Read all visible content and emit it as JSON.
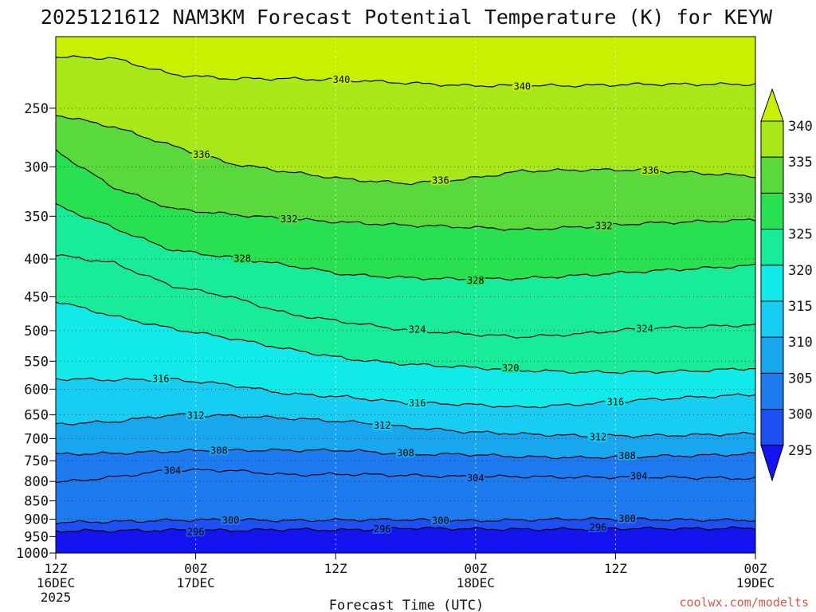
{
  "chart_data": {
    "type": "heatmap",
    "title": "2025121612 NAM3KM Forecast Potential Temperature (K) for KEYW",
    "xlabel": "Forecast Time (UTC)",
    "ylabel": "",
    "x_range_hours": [
      0,
      60
    ],
    "y_range_hpa": [
      1000,
      200
    ],
    "y_scale": "log-pressure",
    "x_ticks": [
      {
        "hour": 0,
        "lines": [
          "12Z",
          "16DEC",
          "2025"
        ]
      },
      {
        "hour": 12,
        "lines": [
          "00Z",
          "17DEC"
        ]
      },
      {
        "hour": 24,
        "lines": [
          "12Z"
        ]
      },
      {
        "hour": 36,
        "lines": [
          "00Z",
          "18DEC"
        ]
      },
      {
        "hour": 48,
        "lines": [
          "12Z"
        ]
      },
      {
        "hour": 60,
        "lines": [
          "00Z",
          "19DEC"
        ]
      }
    ],
    "y_ticks": [
      250,
      300,
      350,
      400,
      450,
      500,
      550,
      600,
      650,
      700,
      750,
      800,
      850,
      900,
      950,
      1000
    ],
    "colorbar": {
      "levels": [
        295,
        300,
        305,
        310,
        315,
        320,
        325,
        330,
        335,
        340
      ],
      "colors": [
        "#1414f2",
        "#1e4ff0",
        "#1e7bef",
        "#18a6ef",
        "#18cdf2",
        "#12eaea",
        "#18ec9a",
        "#28e050",
        "#5ad93c",
        "#a8e818",
        "#c8f000"
      ],
      "labels": [
        "295",
        "300",
        "305",
        "310",
        "315",
        "320",
        "325",
        "330",
        "335",
        "340"
      ]
    },
    "isentropes": [
      {
        "theta": 296,
        "p": [
          933,
          933,
          931,
          932,
          929,
          931,
          925,
          927,
          929,
          928,
          926,
          927,
          925
        ]
      },
      {
        "theta": 300,
        "p": [
          909,
          907,
          903,
          901,
          904,
          902,
          901,
          905,
          902,
          899,
          900,
          902,
          903
        ]
      },
      {
        "theta": 304,
        "p": [
          803,
          789,
          772,
          773,
          784,
          782,
          785,
          788,
          788,
          790,
          789,
          791,
          793
        ]
      },
      {
        "theta": 308,
        "p": [
          735,
          733,
          728,
          726,
          726,
          726,
          735,
          735,
          741,
          743,
          740,
          738,
          734
        ]
      },
      {
        "theta": 312,
        "p": [
          669,
          664,
          650,
          652,
          657,
          664,
          675,
          685,
          690,
          694,
          694,
          692,
          689
        ]
      },
      {
        "theta": 316,
        "p": [
          581,
          583,
          582,
          592,
          609,
          615,
          626,
          629,
          635,
          629,
          621,
          615,
          610
        ]
      },
      {
        "theta": 320,
        "p": [
          456,
          478,
          497,
          512,
          530,
          546,
          555,
          560,
          566,
          569,
          569,
          567,
          562
        ]
      },
      {
        "theta": 324,
        "p": [
          395,
          405,
          435,
          450,
          475,
          487,
          499,
          505,
          510,
          505,
          497,
          494,
          491
        ]
      },
      {
        "theta": 328,
        "p": [
          338,
          363,
          389,
          398,
          408,
          420,
          424,
          426,
          425,
          421,
          416,
          412,
          408
        ]
      },
      {
        "theta": 332,
        "p": [
          285,
          320,
          342,
          348,
          353,
          357,
          360,
          362,
          365,
          362,
          358,
          356,
          354
        ]
      },
      {
        "theta": 336,
        "p": [
          255,
          265,
          281,
          297,
          305,
          312,
          316,
          312,
          304,
          303,
          303,
          306,
          309
        ]
      },
      {
        "theta": 340,
        "p": [
          213,
          214,
          225,
          228,
          228,
          229,
          231,
          233,
          233,
          233,
          232,
          232,
          232
        ]
      }
    ],
    "contour_labels": [
      {
        "theta": 340,
        "hour": 24.5
      },
      {
        "theta": 340,
        "hour": 40.0
      },
      {
        "theta": 336,
        "hour": 12.5
      },
      {
        "theta": 336,
        "hour": 33.0
      },
      {
        "theta": 336,
        "hour": 51.0
      },
      {
        "theta": 332,
        "hour": 20.0
      },
      {
        "theta": 332,
        "hour": 47.0
      },
      {
        "theta": 328,
        "hour": 16.0
      },
      {
        "theta": 328,
        "hour": 36.0
      },
      {
        "theta": 324,
        "hour": 31.0
      },
      {
        "theta": 324,
        "hour": 50.5
      },
      {
        "theta": 320,
        "hour": 39.0
      },
      {
        "theta": 316,
        "hour": 9.0
      },
      {
        "theta": 316,
        "hour": 31.0
      },
      {
        "theta": 316,
        "hour": 48.0
      },
      {
        "theta": 312,
        "hour": 12.0
      },
      {
        "theta": 312,
        "hour": 28.0
      },
      {
        "theta": 312,
        "hour": 46.5
      },
      {
        "theta": 308,
        "hour": 14.0
      },
      {
        "theta": 308,
        "hour": 30.0
      },
      {
        "theta": 308,
        "hour": 49.0
      },
      {
        "theta": 304,
        "hour": 10.0
      },
      {
        "theta": 304,
        "hour": 36.0
      },
      {
        "theta": 304,
        "hour": 50.0
      },
      {
        "theta": 300,
        "hour": 15.0
      },
      {
        "theta": 300,
        "hour": 33.0
      },
      {
        "theta": 300,
        "hour": 49.0
      },
      {
        "theta": 296,
        "hour": 12.0
      },
      {
        "theta": 296,
        "hour": 28.0
      },
      {
        "theta": 296,
        "hour": 46.5
      }
    ],
    "ground_color": "#a0522d",
    "watermark": "coolwx.com/modelts"
  }
}
